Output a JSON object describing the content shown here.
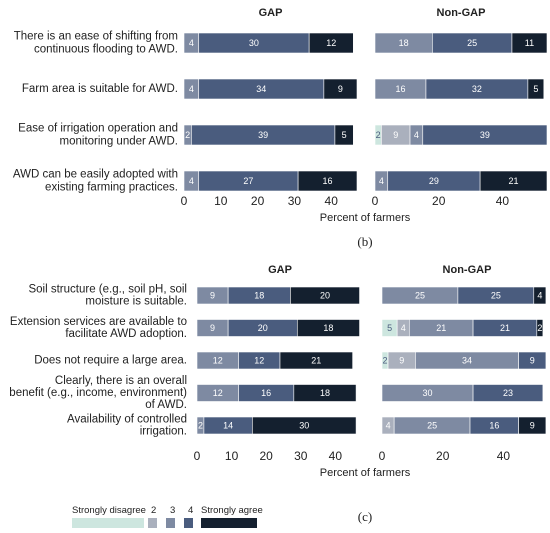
{
  "chart_data": [
    {
      "type": "bar",
      "stacked": true,
      "orientation": "horizontal",
      "figure_label": "(b)",
      "xlabel": "Percent of farmers",
      "categories": [
        "There is an ease of shifting from continuous flooding to AWD.",
        "Farm area is suitable for AWD.",
        "Ease of irrigation operation and monitoring under AWD.",
        "AWD can be easily adopted with existing farming practices."
      ],
      "category_lines": [
        [
          "There is an ease of shifting from",
          "continuous flooding to AWD."
        ],
        [
          "Farm area is suitable for AWD."
        ],
        [
          "Ease of irrigation operation and",
          "monitoring under AWD."
        ],
        [
          "AWD can be easily adopted with",
          "existing farming practices."
        ]
      ],
      "panels": [
        {
          "title": "GAP",
          "xlim": [
            0,
            47
          ],
          "ticks": [
            0,
            10,
            20,
            30,
            40
          ],
          "rows": [
            [
              0,
              0,
              4,
              30,
              12
            ],
            [
              0,
              0,
              4,
              34,
              9
            ],
            [
              0,
              0,
              2,
              39,
              5
            ],
            [
              0,
              0,
              4,
              27,
              16
            ]
          ]
        },
        {
          "title": "Non-GAP",
          "xlim": [
            0,
            54
          ],
          "ticks": [
            0,
            20,
            40
          ],
          "rows": [
            [
              0,
              0,
              18,
              25,
              11
            ],
            [
              0,
              0,
              16,
              32,
              5
            ],
            [
              2,
              9,
              4,
              39,
              0
            ],
            [
              0,
              0,
              4,
              29,
              21
            ]
          ]
        }
      ]
    },
    {
      "type": "bar",
      "stacked": true,
      "orientation": "horizontal",
      "figure_label": "(c)",
      "xlabel": "Percent of farmers",
      "categories": [
        "Soil structure (e.g., soil pH, soil moisture is suitable.",
        "Extension services are available to facilitate AWD adoption.",
        "Does not require a large area.",
        "Clearly, there is an overall benefit (e.g., income, environment) of AWD.",
        "Availability of controlled irrigation."
      ],
      "category_lines": [
        [
          "Soil structure (e.g., soil pH, soil",
          "moisture is suitable."
        ],
        [
          "Extension services are available to",
          "facilitate AWD adoption."
        ],
        [
          "Does not require a large area."
        ],
        [
          "Clearly, there is an overall",
          "benefit (e.g., income, environment)",
          "of AWD."
        ],
        [
          "Availability of controlled",
          "irrigation."
        ]
      ],
      "panels": [
        {
          "title": "GAP",
          "xlim": [
            0,
            48
          ],
          "ticks": [
            0,
            10,
            20,
            30,
            40
          ],
          "rows": [
            [
              0,
              0,
              9,
              18,
              20
            ],
            [
              0,
              0,
              9,
              20,
              18
            ],
            [
              0,
              0,
              12,
              12,
              21
            ],
            [
              0,
              0,
              12,
              16,
              18
            ],
            [
              0,
              0,
              2,
              14,
              30
            ]
          ]
        },
        {
          "title": "Non-GAP",
          "xlim": [
            0,
            56
          ],
          "ticks": [
            0,
            20,
            40
          ],
          "rows": [
            [
              0,
              0,
              25,
              25,
              4
            ],
            [
              5,
              4,
              21,
              21,
              2
            ],
            [
              2,
              9,
              34,
              9,
              0
            ],
            [
              0,
              0,
              30,
              23,
              0
            ],
            [
              0,
              4,
              25,
              16,
              9
            ]
          ]
        }
      ]
    }
  ],
  "legend": {
    "items": [
      "Strongly disagree",
      "2",
      "3",
      "4",
      "Strongly agree"
    ],
    "colors": [
      "#cde6df",
      "#aab0bd",
      "#7e8aa2",
      "#4a5c7e",
      "#14202f"
    ],
    "text_colors": [
      "#4a5c7e",
      "#ffffff",
      "#ffffff",
      "#ffffff",
      "#ffffff"
    ]
  }
}
